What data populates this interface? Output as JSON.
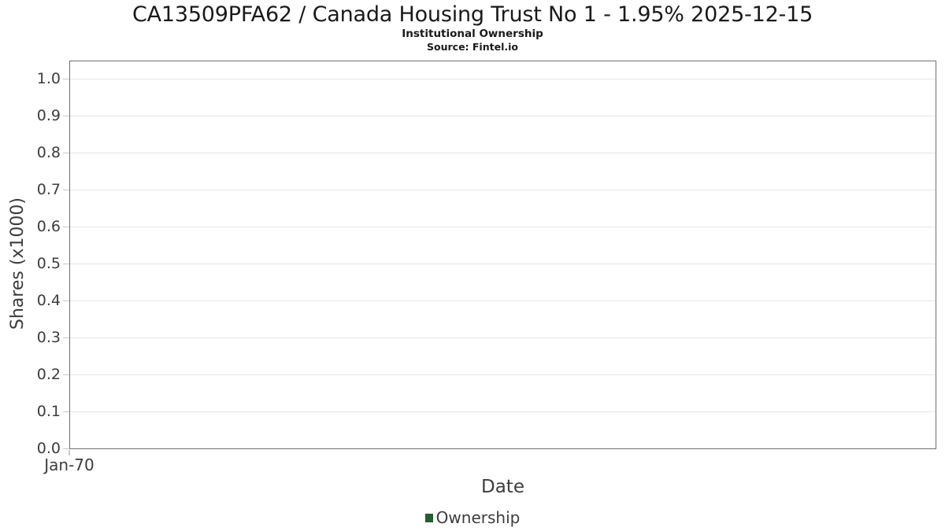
{
  "title": "CA13509PFA62 / Canada Housing Trust No 1 - 1.95% 2025-12-15",
  "subtitle": "Institutional Ownership",
  "source": "Source: Fintel.io",
  "chart_data": {
    "type": "line",
    "title": "CA13509PFA62 / Canada Housing Trust No 1 - 1.95% 2025-12-15",
    "subtitle": "Institutional Ownership",
    "xlabel": "Date",
    "ylabel": "Shares (x1000)",
    "xticks": [
      "Jan-70"
    ],
    "yticks": [
      "1.0",
      "0.9",
      "0.8",
      "0.7",
      "0.6",
      "0.5",
      "0.4",
      "0.3",
      "0.2",
      "0.1",
      "0.0"
    ],
    "ylim": [
      0,
      1.05
    ],
    "grid": true,
    "legend_position": "bottom-center",
    "series": [
      {
        "name": "Ownership",
        "color": "#265c33",
        "x": [],
        "values": []
      }
    ]
  },
  "colors": {
    "legend_marker": "#265c33",
    "gridline": "#e6e6e6",
    "plot_border": "#707070",
    "tick_mark": "#c8c8c8",
    "title_text": "#1a1a1a",
    "axis_text": "#3d3d3d"
  }
}
